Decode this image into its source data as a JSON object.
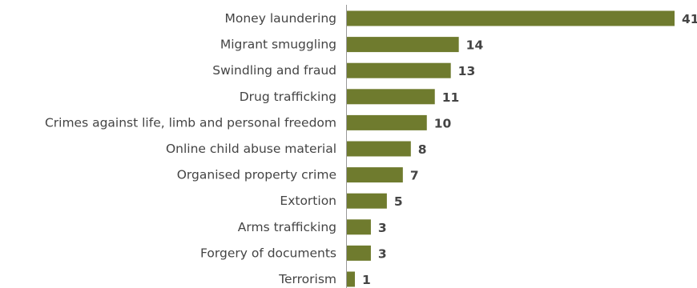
{
  "colors": {
    "bar": "#6f7b2e",
    "text": "#444444",
    "axis": "#9a9a9a"
  },
  "chart_data": {
    "type": "bar",
    "orientation": "horizontal",
    "title": "",
    "xlabel": "",
    "ylabel": "",
    "categories": [
      "Money laundering",
      "Migrant smuggling",
      "Swindling and fraud",
      "Drug trafficking",
      "Crimes against life, limb and personal freedom",
      "Online child abuse material",
      "Organised property crime",
      "Extortion",
      "Arms trafficking",
      "Forgery of documents",
      "Terrorism"
    ],
    "values": [
      41,
      14,
      13,
      11,
      10,
      8,
      7,
      5,
      3,
      3,
      1
    ],
    "xlim": [
      0,
      41
    ],
    "grid": false,
    "legend": "none",
    "data_labels": true
  }
}
